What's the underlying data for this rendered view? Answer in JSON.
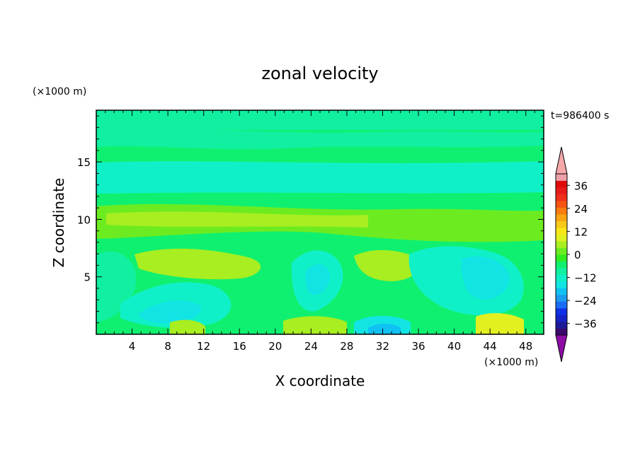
{
  "chart_data": {
    "type": "heatmap",
    "title": "zonal velocity",
    "xlabel": "X coordinate",
    "ylabel": "Z coordinate",
    "x_unit": "(×1000 m)",
    "y_unit": "(×1000 m)",
    "time_label": "t=986400 s",
    "xlim": [
      0,
      50
    ],
    "ylim": [
      0,
      19.5
    ],
    "x_ticks": [
      4,
      8,
      12,
      16,
      20,
      24,
      28,
      32,
      36,
      40,
      44,
      48
    ],
    "y_ticks": [
      5,
      10,
      15
    ],
    "grid": false,
    "legend": "colorbar right, triangular extension arrows",
    "colorbar": {
      "levels": [
        -42,
        -39,
        -36,
        -33,
        -30,
        -27,
        -24,
        -21,
        -18,
        -15,
        -12,
        -9,
        -6,
        -3,
        0,
        3,
        6,
        9,
        12,
        15,
        18,
        21,
        24,
        27,
        30,
        33,
        36,
        39,
        42
      ],
      "tick_labels": [
        "36",
        "24",
        "12",
        "0",
        "−12",
        "−24",
        "−36"
      ],
      "tick_values": [
        36,
        24,
        12,
        0,
        -12,
        -24,
        -36
      ],
      "colors": [
        "#3a0a6e",
        "#1d1a96",
        "#1522c4",
        "#1030e6",
        "#1a6cf2",
        "#1a9cf0",
        "#10c2f2",
        "#12e4e4",
        "#10f0c8",
        "#10f0a0",
        "#10f070",
        "#30ec20",
        "#6cec20",
        "#a8ee20",
        "#e2f020",
        "#f8e618",
        "#f8c818",
        "#f8a414",
        "#f87c10",
        "#f45410",
        "#f0301a",
        "#e81a1a",
        "#e00a0a",
        "#f0a0a8"
      ],
      "under_color": "#8c0ca4",
      "over_color": "#f4a8a8"
    },
    "field_description": "2-D zonal velocity field; mostly near-zero green/teal shades with weak negative (cyan) and weak positive (yellow-green) patches"
  }
}
